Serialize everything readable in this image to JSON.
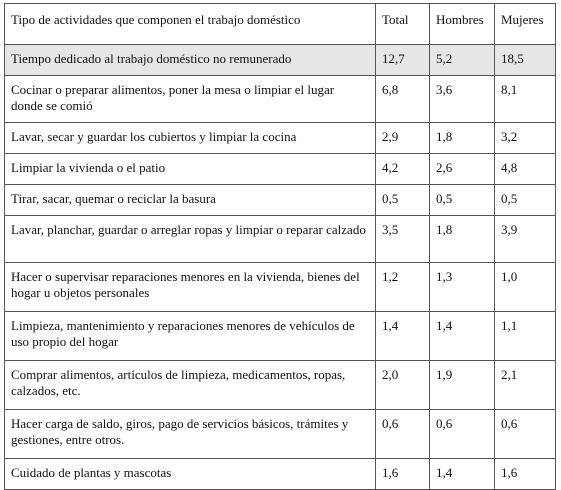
{
  "table": {
    "headers": [
      "Tipo de actividades que componen el trabajo doméstico",
      "Total",
      "Hombres",
      "Mujeres"
    ],
    "rows": [
      {
        "activity": "Tiempo dedicado al trabajo doméstico no remunerado",
        "total": "12,7",
        "hombres": "5,2",
        "mujeres": "18,5"
      },
      {
        "activity": "Cocinar o preparar alimentos, poner la mesa o limpiar el lugar donde se comió",
        "total": "6,8",
        "hombres": "3,6",
        "mujeres": "8,1"
      },
      {
        "activity": "Lavar, secar y guardar los cubiertos y limpiar la cocina",
        "total": "2,9",
        "hombres": "1,8",
        "mujeres": "3,2"
      },
      {
        "activity": "Limpiar la vivienda o el patio",
        "total": "4,2",
        "hombres": "2,6",
        "mujeres": "4,8"
      },
      {
        "activity": "Tirar, sacar, quemar o reciclar la basura",
        "total": "0,5",
        "hombres": "0,5",
        "mujeres": "0,5"
      },
      {
        "activity": "Lavar, planchar, guardar o arreglar ropas y limpiar o reparar calzado",
        "total": "3,5",
        "hombres": "1,8",
        "mujeres": "3,9"
      },
      {
        "activity": "Hacer o supervisar reparaciones menores en la vivienda, bienes del hogar u objetos personales",
        "total": "1,2",
        "hombres": "1,3",
        "mujeres": "1,0"
      },
      {
        "activity": "Limpieza, mantenimiento y reparaciones menores de vehículos de uso propio del hogar",
        "total": "1,4",
        "hombres": "1,4",
        "mujeres": "1,1"
      },
      {
        "activity": "Comprar alimentos, artículos de limpieza, medicamentos, ropas, calzados, etc.",
        "total": "2,0",
        "hombres": "1,9",
        "mujeres": "2,1"
      },
      {
        "activity": "Hacer carga de saldo, giros, pago de servicios básicos, trámites y gestiones, entre otros.",
        "total": "0,6",
        "hombres": "0,6",
        "mujeres": "0,6"
      },
      {
        "activity": "Cuidado de plantas y mascotas",
        "total": "1,6",
        "hombres": "1,4",
        "mujeres": "1,6"
      }
    ]
  }
}
